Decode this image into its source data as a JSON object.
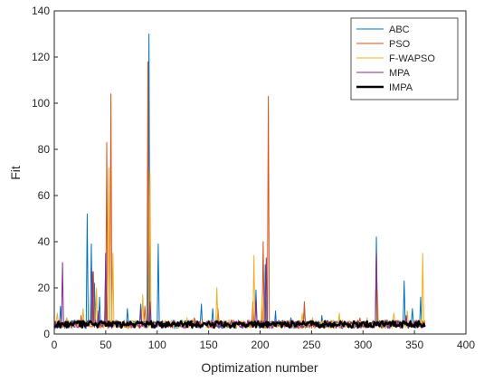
{
  "chart_data": {
    "type": "line",
    "xlabel": "Optimization number",
    "ylabel": "Fit",
    "xlim": [
      0,
      400
    ],
    "ylim": [
      0,
      140
    ],
    "xticks": [
      0,
      50,
      100,
      150,
      200,
      250,
      300,
      350,
      400
    ],
    "yticks": [
      0,
      20,
      40,
      60,
      80,
      100,
      120,
      140
    ],
    "grid": false,
    "legend_position": "top-right",
    "baseline": {
      "length": 360,
      "level": 4.2
    },
    "series": [
      {
        "name": "ABC",
        "color": "#0072BD",
        "line_width": 1,
        "spikes": [
          [
            6,
            12
          ],
          [
            32,
            52
          ],
          [
            36,
            39
          ],
          [
            39,
            22
          ],
          [
            44,
            16
          ],
          [
            50,
            35
          ],
          [
            71,
            11
          ],
          [
            84,
            13
          ],
          [
            92,
            130
          ],
          [
            101,
            39
          ],
          [
            143,
            13
          ],
          [
            154,
            11
          ],
          [
            196,
            19
          ],
          [
            205,
            30
          ],
          [
            215,
            10
          ],
          [
            230,
            7
          ],
          [
            243,
            12
          ],
          [
            260,
            8
          ],
          [
            313,
            42
          ],
          [
            340,
            23
          ],
          [
            348,
            11
          ],
          [
            356,
            16
          ]
        ]
      },
      {
        "name": "PSO",
        "color": "#D95319",
        "line_width": 1,
        "spikes": [
          [
            5,
            6
          ],
          [
            26,
            8
          ],
          [
            38,
            27
          ],
          [
            51,
            83
          ],
          [
            55,
            104
          ],
          [
            88,
            12
          ],
          [
            91,
            118
          ],
          [
            136,
            7
          ],
          [
            159,
            11
          ],
          [
            193,
            14
          ],
          [
            203,
            40
          ],
          [
            208,
            103
          ],
          [
            243,
            14
          ],
          [
            297,
            7
          ],
          [
            313,
            35
          ],
          [
            322,
            6
          ]
        ]
      },
      {
        "name": "F-WAPSO",
        "color": "#EDB120",
        "line_width": 1,
        "spikes": [
          [
            3,
            9
          ],
          [
            12,
            7
          ],
          [
            28,
            11
          ],
          [
            41,
            20
          ],
          [
            53,
            72
          ],
          [
            57,
            35
          ],
          [
            86,
            17
          ],
          [
            93,
            70
          ],
          [
            129,
            7
          ],
          [
            158,
            20
          ],
          [
            194,
            34
          ],
          [
            202,
            17
          ],
          [
            241,
            9
          ],
          [
            251,
            7
          ],
          [
            277,
            9
          ],
          [
            304,
            7
          ],
          [
            314,
            19
          ],
          [
            330,
            9
          ],
          [
            343,
            10
          ],
          [
            358,
            35
          ]
        ]
      },
      {
        "name": "MPA",
        "color": "#7E2F8E",
        "line_width": 1,
        "spikes": [
          [
            8,
            31
          ],
          [
            37,
            27
          ],
          [
            43,
            10
          ],
          [
            50,
            35
          ],
          [
            84,
            11
          ],
          [
            93,
            14
          ],
          [
            196,
            15
          ],
          [
            206,
            33
          ],
          [
            230,
            6
          ],
          [
            313,
            35
          ],
          [
            342,
            8
          ]
        ]
      },
      {
        "name": "IMPA",
        "color": "#000000",
        "line_width": 2.4,
        "spikes": []
      }
    ]
  }
}
